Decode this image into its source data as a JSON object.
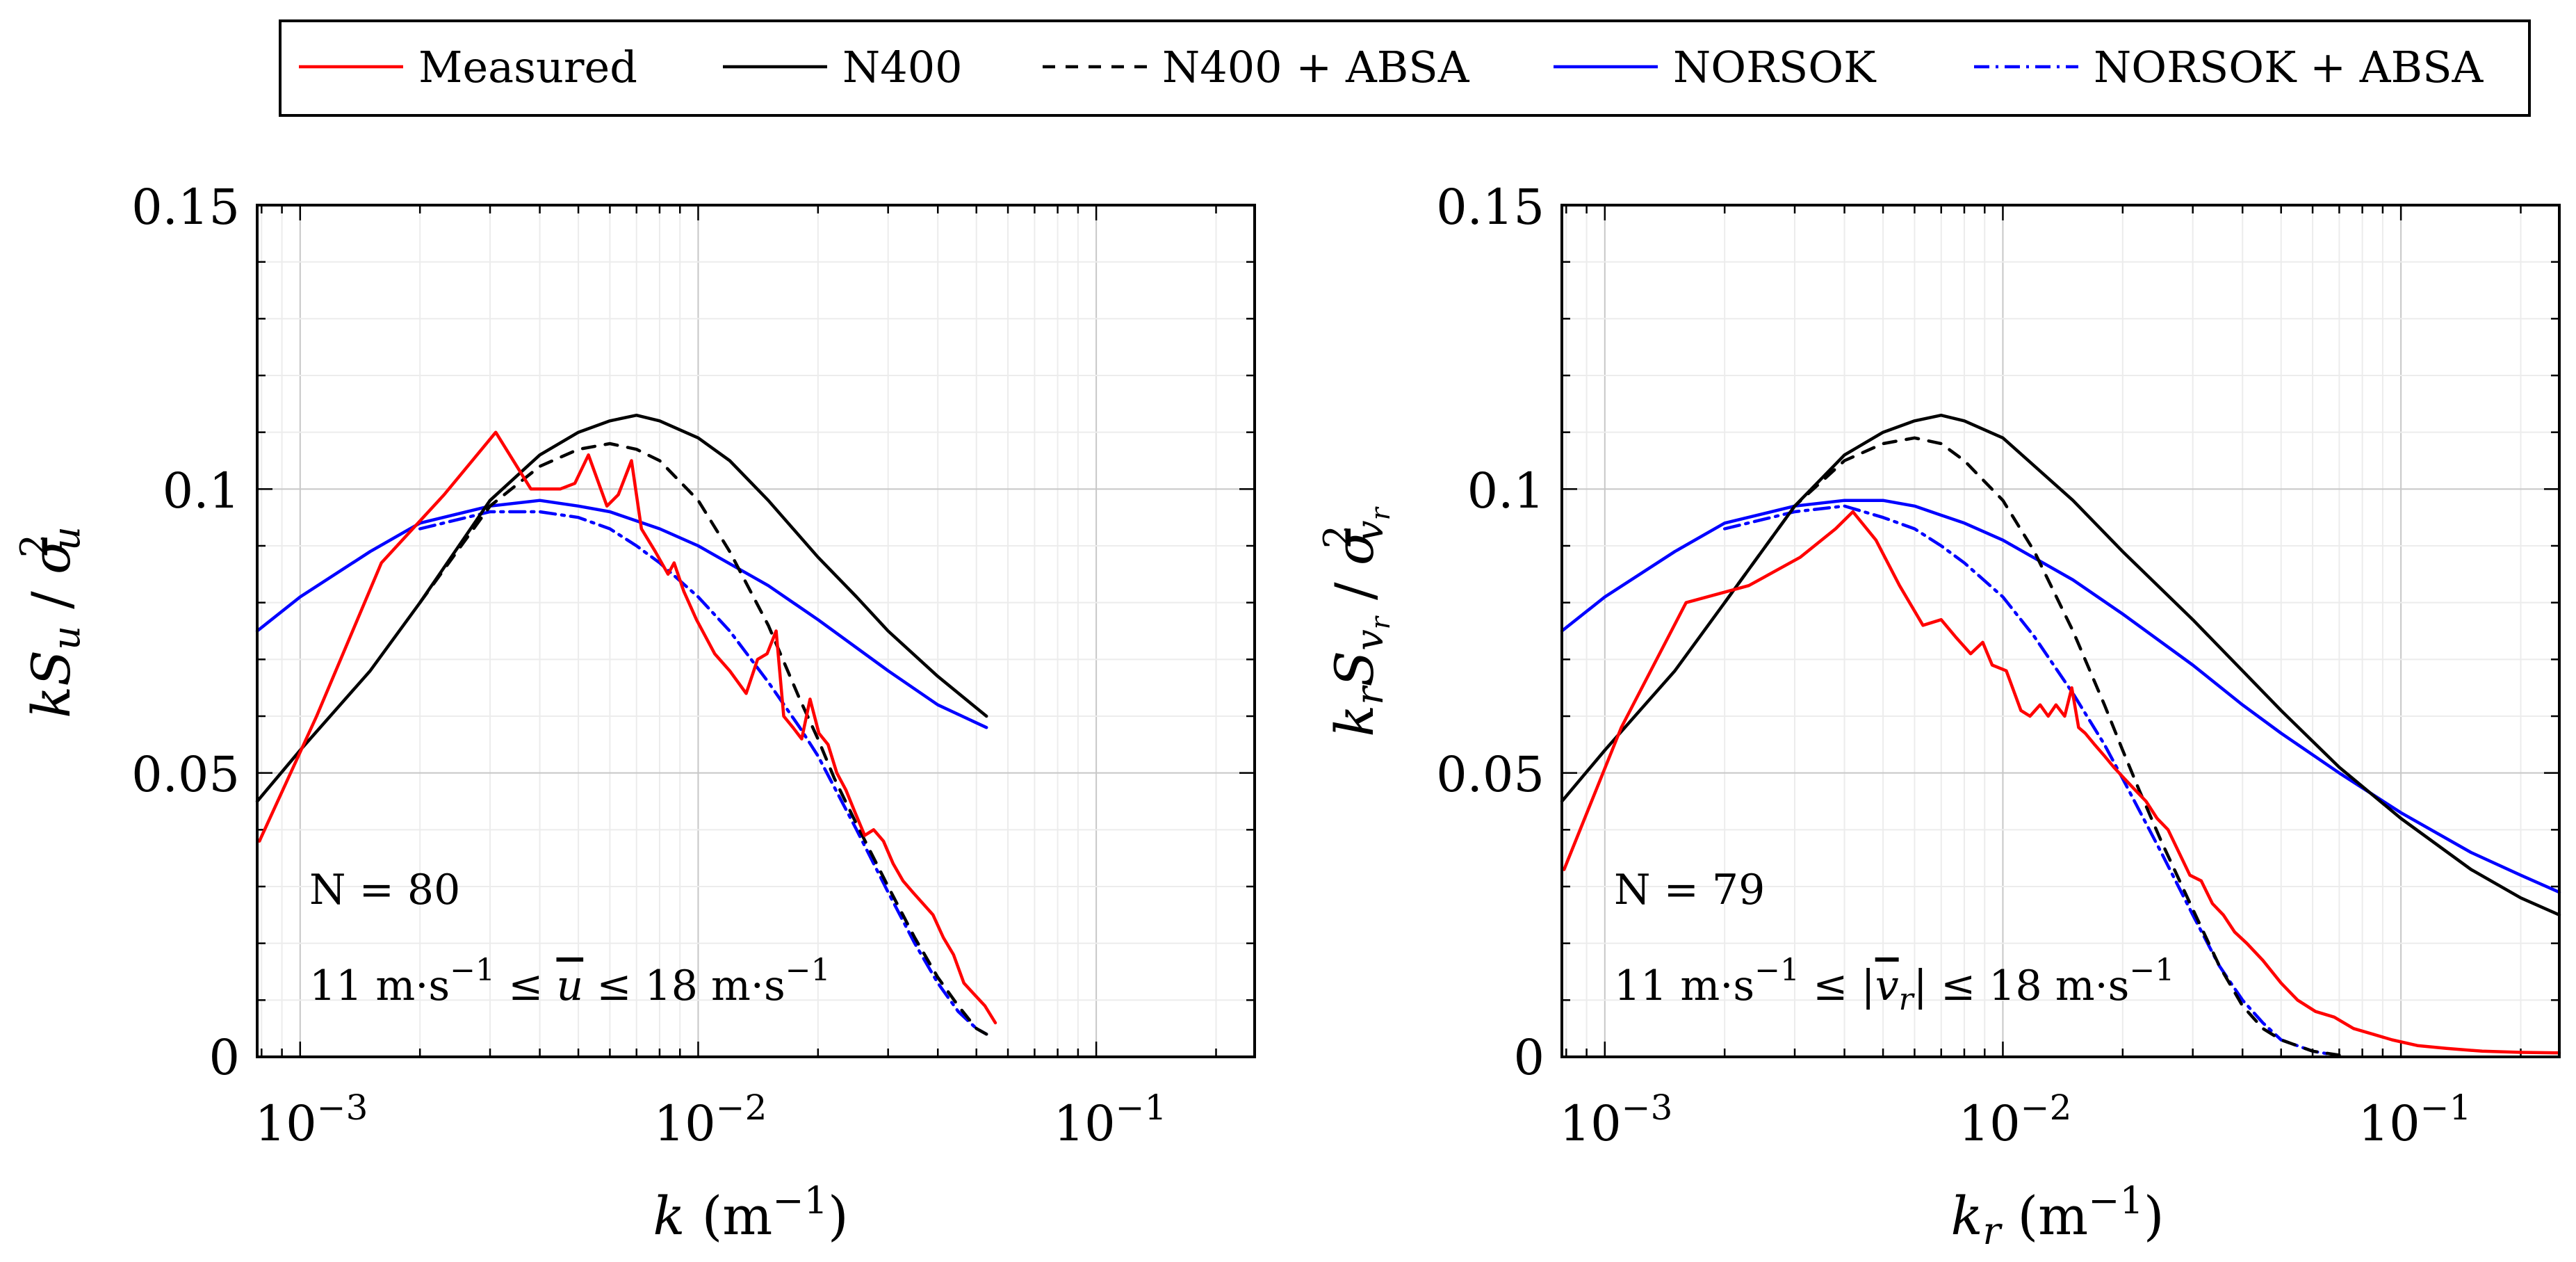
{
  "legend": [
    {
      "key": "measured",
      "label": "Measured",
      "color": "#ff0000",
      "dash": "solid"
    },
    {
      "key": "n400",
      "label": "N400",
      "color": "#000000",
      "dash": "solid"
    },
    {
      "key": "n400_absa",
      "label": "N400 + ABSA",
      "color": "#000000",
      "dash": "dashed"
    },
    {
      "key": "norsok",
      "label": "NORSOK",
      "color": "#0000ff",
      "dash": "solid"
    },
    {
      "key": "norsok_absa",
      "label": "NORSOK + ABSA",
      "color": "#0000ff",
      "dash": "dashdot"
    }
  ],
  "left": {
    "y_ticks": [
      "0",
      "0.05",
      "0.1",
      "0.15"
    ],
    "x_ticks": [
      {
        "base": "10",
        "exp": "−3"
      },
      {
        "base": "10",
        "exp": "−2"
      },
      {
        "base": "10",
        "exp": "−1"
      }
    ],
    "ylabel": "kS_u / σ_u^2",
    "xlabel": {
      "var": "k",
      "unit_open": " (m",
      "unit_exp": "−1",
      "unit_close": ")"
    },
    "annot_n": "N = 80",
    "annot_range": {
      "p1": "11 m·s",
      "e1": "−1",
      "p2": " ≤ ",
      "var": "u",
      "p3": " ≤ 18 m·s",
      "e2": "−1"
    }
  },
  "right": {
    "y_ticks": [
      "0",
      "0.05",
      "0.1",
      "0.15"
    ],
    "x_ticks": [
      {
        "base": "10",
        "exp": "−3"
      },
      {
        "base": "10",
        "exp": "−2"
      },
      {
        "base": "10",
        "exp": "−1"
      }
    ],
    "ylabel": "k_r S_{v_r} / σ_{v_r}^2",
    "xlabel": {
      "var": "k",
      "sub": "r",
      "unit_open": " (m",
      "unit_exp": "−1",
      "unit_close": ")"
    },
    "annot_n": "N = 79",
    "annot_range": {
      "p1": "11 m·s",
      "e1": "−1",
      "p2": " ≤ |",
      "var": "v",
      "sub": "r",
      "p3": "| ≤ 18 m·s",
      "e2": "−1"
    }
  },
  "chart_data": [
    {
      "type": "line",
      "panel": "left",
      "xscale": "log",
      "xlim": [
        0.00078,
        0.25
      ],
      "ylim": [
        0,
        0.15
      ],
      "xlabel": "k (m^-1)",
      "ylabel": "kS_u/σ_u^2",
      "series": [
        {
          "name": "Measured",
          "x": [
            0.00079,
            0.0011,
            0.0016,
            0.0023,
            0.0031,
            0.0038,
            0.0045,
            0.0049,
            0.0053,
            0.0059,
            0.0063,
            0.0068,
            0.0072,
            0.0078,
            0.0084,
            0.0087,
            0.0092,
            0.0099,
            0.011,
            0.012,
            0.0132,
            0.0141,
            0.0149,
            0.0157,
            0.0164,
            0.0173,
            0.0182,
            0.0191,
            0.0201,
            0.0212,
            0.0223,
            0.0235,
            0.0248,
            0.0262,
            0.0276,
            0.0292,
            0.0309,
            0.0327,
            0.0346,
            0.0367,
            0.0389,
            0.0413,
            0.0438,
            0.0465,
            0.0494,
            0.0525,
            0.0558
          ],
          "y": [
            0.038,
            0.06,
            0.087,
            0.099,
            0.11,
            0.1,
            0.1,
            0.101,
            0.106,
            0.097,
            0.099,
            0.105,
            0.093,
            0.089,
            0.085,
            0.087,
            0.082,
            0.077,
            0.071,
            0.068,
            0.064,
            0.07,
            0.071,
            0.075,
            0.06,
            0.058,
            0.056,
            0.063,
            0.057,
            0.055,
            0.05,
            0.047,
            0.043,
            0.039,
            0.04,
            0.038,
            0.034,
            0.031,
            0.029,
            0.027,
            0.025,
            0.021,
            0.018,
            0.013,
            0.011,
            0.009,
            0.006
          ]
        },
        {
          "name": "N400",
          "x": [
            0.00078,
            0.001,
            0.0015,
            0.002,
            0.003,
            0.004,
            0.005,
            0.006,
            0.007,
            0.008,
            0.01,
            0.012,
            0.015,
            0.02,
            0.025,
            0.03,
            0.04,
            0.053
          ],
          "y": [
            0.045,
            0.054,
            0.068,
            0.08,
            0.098,
            0.106,
            0.11,
            0.112,
            0.113,
            0.112,
            0.109,
            0.105,
            0.098,
            0.088,
            0.081,
            0.075,
            0.067,
            0.06
          ]
        },
        {
          "name": "N400 + ABSA",
          "x": [
            0.002,
            0.003,
            0.004,
            0.005,
            0.006,
            0.007,
            0.008,
            0.01,
            0.012,
            0.015,
            0.018,
            0.02,
            0.022,
            0.025,
            0.03,
            0.035,
            0.04,
            0.045,
            0.05,
            0.053
          ],
          "y": [
            0.08,
            0.097,
            0.104,
            0.107,
            0.108,
            0.107,
            0.105,
            0.098,
            0.089,
            0.076,
            0.063,
            0.056,
            0.049,
            0.041,
            0.03,
            0.021,
            0.014,
            0.009,
            0.005,
            0.004
          ]
        },
        {
          "name": "NORSOK",
          "x": [
            0.00078,
            0.001,
            0.0015,
            0.002,
            0.003,
            0.004,
            0.005,
            0.006,
            0.008,
            0.01,
            0.015,
            0.02,
            0.03,
            0.04,
            0.053
          ],
          "y": [
            0.075,
            0.081,
            0.089,
            0.094,
            0.097,
            0.098,
            0.097,
            0.096,
            0.093,
            0.09,
            0.083,
            0.077,
            0.068,
            0.062,
            0.058
          ]
        },
        {
          "name": "NORSOK + ABSA",
          "x": [
            0.002,
            0.003,
            0.004,
            0.005,
            0.006,
            0.007,
            0.008,
            0.01,
            0.012,
            0.015,
            0.018,
            0.02,
            0.025,
            0.03,
            0.035,
            0.04,
            0.045,
            0.05,
            0.053
          ],
          "y": [
            0.093,
            0.096,
            0.096,
            0.095,
            0.093,
            0.09,
            0.087,
            0.081,
            0.075,
            0.066,
            0.058,
            0.053,
            0.04,
            0.029,
            0.02,
            0.013,
            0.008,
            0.005,
            0.004
          ]
        }
      ]
    },
    {
      "type": "line",
      "panel": "right",
      "xscale": "log",
      "xlim": [
        0.00078,
        0.25
      ],
      "ylim": [
        0,
        0.15
      ],
      "xlabel": "k_r (m^-1)",
      "ylabel": "k_r S_{v_r}/σ_{v_r}^2",
      "series": [
        {
          "name": "Measured",
          "x": [
            0.00079,
            0.0011,
            0.0016,
            0.0023,
            0.0031,
            0.0038,
            0.0042,
            0.0048,
            0.0055,
            0.0063,
            0.007,
            0.0076,
            0.0083,
            0.0089,
            0.0094,
            0.0102,
            0.0111,
            0.0117,
            0.0124,
            0.013,
            0.0136,
            0.0143,
            0.0149,
            0.0155,
            0.0161,
            0.017,
            0.018,
            0.019,
            0.0202,
            0.0215,
            0.0229,
            0.0244,
            0.026,
            0.0277,
            0.0295,
            0.0315,
            0.0336,
            0.0358,
            0.0382,
            0.041,
            0.045,
            0.05,
            0.055,
            0.061,
            0.068,
            0.076,
            0.085,
            0.095,
            0.11,
            0.13,
            0.16,
            0.2,
            0.25
          ],
          "y": [
            0.033,
            0.058,
            0.08,
            0.083,
            0.088,
            0.093,
            0.096,
            0.091,
            0.083,
            0.076,
            0.077,
            0.074,
            0.071,
            0.073,
            0.069,
            0.068,
            0.061,
            0.06,
            0.062,
            0.06,
            0.062,
            0.06,
            0.065,
            0.058,
            0.057,
            0.055,
            0.053,
            0.051,
            0.049,
            0.047,
            0.045,
            0.042,
            0.04,
            0.036,
            0.032,
            0.031,
            0.027,
            0.025,
            0.022,
            0.02,
            0.017,
            0.013,
            0.01,
            0.008,
            0.007,
            0.005,
            0.004,
            0.003,
            0.002,
            0.0015,
            0.001,
            0.0008,
            0.0007
          ]
        },
        {
          "name": "N400",
          "x": [
            0.00078,
            0.001,
            0.0015,
            0.002,
            0.003,
            0.004,
            0.005,
            0.006,
            0.007,
            0.008,
            0.01,
            0.015,
            0.02,
            0.03,
            0.04,
            0.05,
            0.07,
            0.1,
            0.15,
            0.2,
            0.25
          ],
          "y": [
            0.045,
            0.054,
            0.068,
            0.08,
            0.097,
            0.106,
            0.11,
            0.112,
            0.113,
            0.112,
            0.109,
            0.098,
            0.089,
            0.077,
            0.068,
            0.061,
            0.051,
            0.042,
            0.033,
            0.028,
            0.025
          ]
        },
        {
          "name": "N400 + ABSA",
          "x": [
            0.002,
            0.003,
            0.004,
            0.005,
            0.006,
            0.007,
            0.008,
            0.01,
            0.012,
            0.015,
            0.018,
            0.02,
            0.022,
            0.025,
            0.03,
            0.035,
            0.04,
            0.045,
            0.05,
            0.06,
            0.07
          ],
          "y": [
            0.08,
            0.097,
            0.105,
            0.108,
            0.109,
            0.108,
            0.105,
            0.098,
            0.089,
            0.075,
            0.062,
            0.054,
            0.047,
            0.038,
            0.026,
            0.016,
            0.009,
            0.005,
            0.003,
            0.001,
            0.0003
          ]
        },
        {
          "name": "NORSOK",
          "x": [
            0.00078,
            0.001,
            0.0015,
            0.002,
            0.003,
            0.004,
            0.005,
            0.006,
            0.008,
            0.01,
            0.015,
            0.02,
            0.03,
            0.04,
            0.05,
            0.07,
            0.1,
            0.15,
            0.2,
            0.25
          ],
          "y": [
            0.075,
            0.081,
            0.089,
            0.094,
            0.097,
            0.098,
            0.098,
            0.097,
            0.094,
            0.091,
            0.084,
            0.078,
            0.069,
            0.062,
            0.057,
            0.05,
            0.043,
            0.036,
            0.032,
            0.029
          ]
        },
        {
          "name": "NORSOK + ABSA",
          "x": [
            0.002,
            0.003,
            0.004,
            0.005,
            0.006,
            0.007,
            0.008,
            0.01,
            0.012,
            0.015,
            0.018,
            0.02,
            0.025,
            0.03,
            0.035,
            0.04,
            0.045,
            0.05,
            0.06,
            0.07
          ],
          "y": [
            0.093,
            0.096,
            0.097,
            0.095,
            0.093,
            0.09,
            0.087,
            0.081,
            0.074,
            0.064,
            0.055,
            0.049,
            0.036,
            0.025,
            0.016,
            0.01,
            0.006,
            0.003,
            0.001,
            0.0002
          ]
        }
      ]
    }
  ]
}
